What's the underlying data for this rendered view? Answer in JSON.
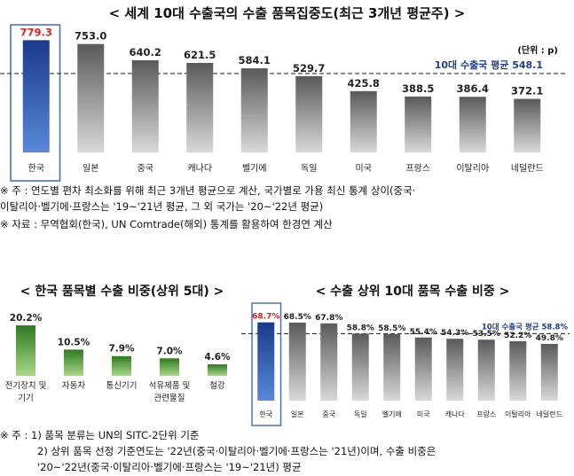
{
  "top": {
    "title": "< 세계 10대 수출국의 수출 품목집중도(최근 3개년 평균주) >",
    "unit": "(단위 : p)",
    "avg_label": "10대 수출국 평균 548.1",
    "notes": [
      "※ 주 : 연도별 편차 최소화를 위해 최근 3개년 평균으로 계산, 국가별로 가용 최신 통계 상이(중국·",
      "이탈리아·벨기에·프랑스는 '19~'21년 평균, 그 외 국가는 '20~'22년 평균)",
      "※ 자료 : 무역협회(한국), UN Comtrade(해외) 통계를 활용하여 한경연 계산"
    ]
  },
  "bottom_left": {
    "title": "< 한국 품목별 수출 비중(상위 5대) >"
  },
  "bottom_right": {
    "title": "< 수출 상위 10대 품목 수출 비중 >",
    "avg_label": "10대 수출국 평균 58.8%"
  },
  "footnotes": [
    "※ 주 : 1) 품목 분류는 UN의 SITC-2단위 기준",
    "2) 상위 품목 선정 기준연도는 '22년(중국·이탈리아·벨기에·프랑스는 '21년)이며, 수출 비중은",
    "'20~'22년(중국·이탈리아·벨기에·프랑스는 '19~'21년) 평균"
  ],
  "colors": {
    "highlight_bar": "#1f3f8f",
    "gray_bar": "#6e6e6e",
    "green_bar": "#3e8a2a",
    "highlight_text": "#e02020",
    "highlight_box": "#4a72c4"
  },
  "chart_data": [
    {
      "type": "bar",
      "title": "< 세계 10대 수출국의 수출 품목집중도(최근 3개년 평균주) >",
      "categories": [
        "한국",
        "일본",
        "중국",
        "캐나다",
        "벨기에",
        "독일",
        "미국",
        "프랑스",
        "이탈리아",
        "네덜란드"
      ],
      "values": [
        779.3,
        753.0,
        640.2,
        621.5,
        584.1,
        529.7,
        425.8,
        388.5,
        386.4,
        372.1
      ],
      "value_labels": [
        "779.3",
        "753.0",
        "640.2",
        "621.5",
        "584.1",
        "529.7",
        "425.8",
        "388.5",
        "386.4",
        "372.1"
      ],
      "reference_line": 548.1,
      "ylim": [
        0,
        800
      ],
      "highlight": "한국",
      "grid": false
    },
    {
      "type": "bar",
      "title": "< 한국 품목별 수출 비중(상위 5대) >",
      "categories": [
        "전기장치 및 기기",
        "자동차",
        "통신기기",
        "석유제품 및 관련물질",
        "철강"
      ],
      "values": [
        20.2,
        10.5,
        7.9,
        7.0,
        4.6
      ],
      "value_labels": [
        "20.2%",
        "10.5%",
        "7.9%",
        "7.0%",
        "4.6%"
      ],
      "ylim": [
        0,
        22
      ],
      "grid": false
    },
    {
      "type": "bar",
      "title": "< 수출 상위 10대 품목 수출 비중 >",
      "categories": [
        "한국",
        "일본",
        "중국",
        "독일",
        "벨기에",
        "미국",
        "캐나다",
        "프랑스",
        "이탈리아",
        "네덜란드"
      ],
      "values": [
        68.7,
        68.5,
        67.8,
        58.8,
        58.5,
        55.4,
        54.3,
        53.5,
        52.2,
        49.8
      ],
      "value_labels": [
        "68.7%",
        "68.5%",
        "67.8%",
        "58.8%",
        "58.5%",
        "55.4%",
        "54.3%",
        "53.5%",
        "52.2%",
        "49.8%"
      ],
      "reference_line": 58.8,
      "ylim": [
        0,
        70
      ],
      "highlight": "한국",
      "grid": false
    }
  ]
}
